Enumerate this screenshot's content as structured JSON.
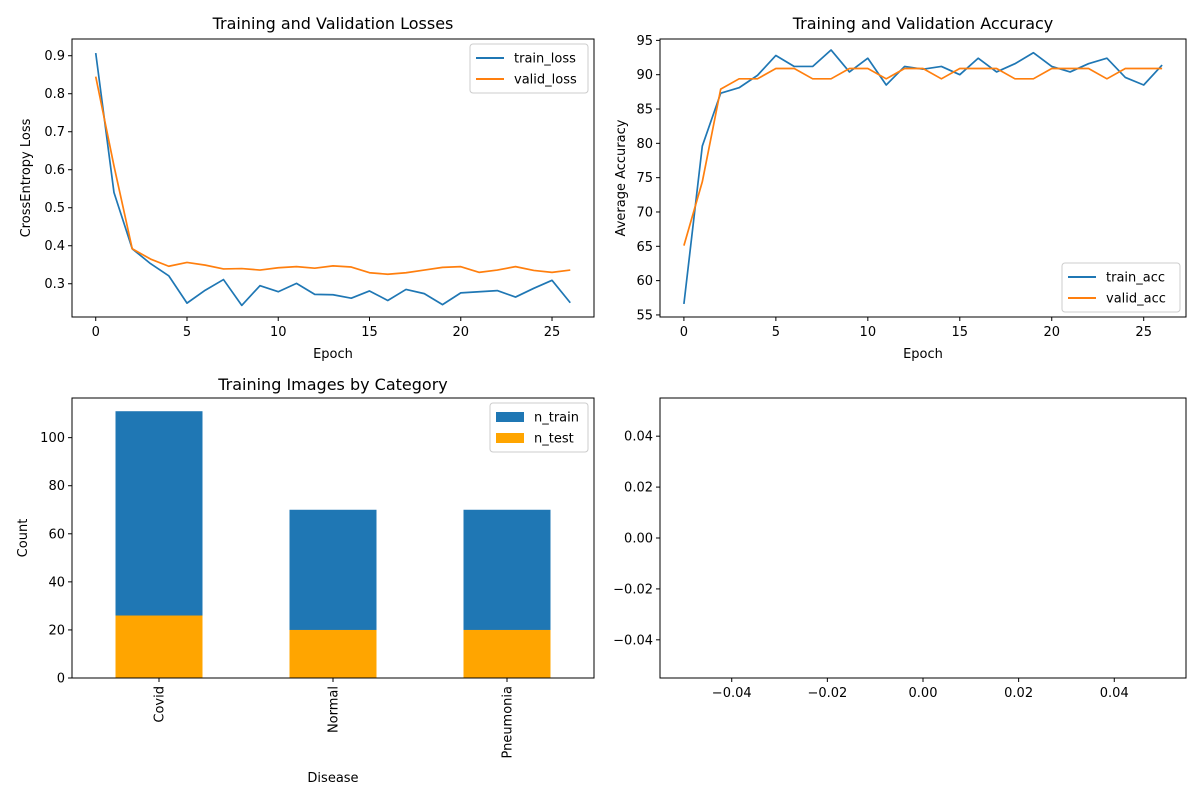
{
  "chart_data": [
    {
      "type": "line",
      "title": "Training and Validation Losses",
      "xlabel": "Epoch",
      "ylabel": "CrossEntropy Loss",
      "xlim": [
        -1.3,
        27.3
      ],
      "ylim": [
        0.2125,
        0.944
      ],
      "xticks": [
        0,
        5,
        10,
        15,
        20,
        25
      ],
      "yticks": [
        0.3,
        0.4,
        0.5,
        0.6,
        0.7,
        0.8,
        0.9
      ],
      "tick_labels_x": [
        "0",
        "5",
        "10",
        "15",
        "20",
        "25"
      ],
      "tick_labels_y": [
        "0.3",
        "0.4",
        "0.5",
        "0.6",
        "0.7",
        "0.8",
        "0.9"
      ],
      "legend": "upper right",
      "x": [
        0,
        1,
        2,
        3,
        4,
        5,
        6,
        7,
        8,
        9,
        10,
        11,
        12,
        13,
        14,
        15,
        16,
        17,
        18,
        19,
        20,
        21,
        22,
        23,
        24,
        25,
        26
      ],
      "series": [
        {
          "name": "train_loss",
          "color": "#1f77b4",
          "values": [
            0.907,
            0.54,
            0.392,
            0.353,
            0.321,
            0.249,
            0.283,
            0.311,
            0.243,
            0.295,
            0.279,
            0.301,
            0.272,
            0.271,
            0.262,
            0.281,
            0.256,
            0.285,
            0.274,
            0.245,
            0.276,
            0.279,
            0.282,
            0.265,
            0.288,
            0.309,
            0.25
          ]
        },
        {
          "name": "valid_loss",
          "color": "#ff7f0e",
          "values": [
            0.845,
            0.61,
            0.392,
            0.365,
            0.346,
            0.356,
            0.349,
            0.339,
            0.34,
            0.336,
            0.342,
            0.345,
            0.341,
            0.347,
            0.344,
            0.329,
            0.325,
            0.329,
            0.336,
            0.343,
            0.345,
            0.33,
            0.336,
            0.345,
            0.335,
            0.33,
            0.336
          ]
        }
      ]
    },
    {
      "type": "line",
      "title": "Training and Validation Accuracy",
      "xlabel": "Epoch",
      "ylabel": "Average Accuracy",
      "xlim": [
        -1.3,
        27.3
      ],
      "ylim": [
        54.7,
        95.2
      ],
      "xticks": [
        0,
        5,
        10,
        15,
        20,
        25
      ],
      "yticks": [
        55,
        60,
        65,
        70,
        75,
        80,
        85,
        90,
        95
      ],
      "tick_labels_x": [
        "0",
        "5",
        "10",
        "15",
        "20",
        "25"
      ],
      "tick_labels_y": [
        "55",
        "60",
        "65",
        "70",
        "75",
        "80",
        "85",
        "90",
        "95"
      ],
      "legend": "lower right",
      "x": [
        0,
        1,
        2,
        3,
        4,
        5,
        6,
        7,
        8,
        9,
        10,
        11,
        12,
        13,
        14,
        15,
        16,
        17,
        18,
        19,
        20,
        21,
        22,
        23,
        24,
        25,
        26
      ],
      "series": [
        {
          "name": "train_acc",
          "color": "#1f77b4",
          "values": [
            56.6,
            79.6,
            87.3,
            88.1,
            89.9,
            92.8,
            91.2,
            91.2,
            93.6,
            90.4,
            92.4,
            88.5,
            91.2,
            90.8,
            91.2,
            90.0,
            92.4,
            90.4,
            91.6,
            93.2,
            91.2,
            90.4,
            91.6,
            92.4,
            89.6,
            88.5,
            91.4
          ]
        },
        {
          "name": "valid_acc",
          "color": "#ff7f0e",
          "values": [
            65.1,
            74.4,
            87.9,
            89.4,
            89.4,
            90.9,
            90.9,
            89.4,
            89.4,
            90.9,
            90.9,
            89.4,
            90.9,
            90.9,
            89.4,
            90.9,
            90.9,
            90.9,
            89.4,
            89.4,
            90.9,
            90.9,
            90.9,
            89.4,
            90.9,
            90.9,
            90.9
          ]
        }
      ]
    },
    {
      "type": "bar",
      "title": "Training Images by Category",
      "xlabel": "Disease",
      "ylabel": "Count",
      "ylim": [
        0,
        116.5
      ],
      "yticks": [
        0,
        20,
        40,
        60,
        80,
        100
      ],
      "tick_labels_y": [
        "0",
        "20",
        "40",
        "60",
        "80",
        "100"
      ],
      "legend": "upper right",
      "categories": [
        "Covid",
        "Normal",
        "Pneumonia"
      ],
      "series": [
        {
          "name": "n_train",
          "color": "#1f77b4",
          "values": [
            111,
            70,
            70
          ]
        },
        {
          "name": "n_test",
          "color": "#ffa500",
          "values": [
            26,
            20,
            20
          ]
        }
      ]
    },
    {
      "type": "line",
      "title": "",
      "xlabel": "",
      "ylabel": "",
      "xlim": [
        -0.055,
        0.055
      ],
      "ylim": [
        -0.055,
        0.055
      ],
      "xticks": [
        -0.04,
        -0.02,
        0.0,
        0.02,
        0.04
      ],
      "yticks": [
        -0.04,
        -0.02,
        0.0,
        0.02,
        0.04
      ],
      "tick_labels_x": [
        "−0.04",
        "−0.02",
        "0.00",
        "0.02",
        "0.04"
      ],
      "tick_labels_y": [
        "−0.04",
        "−0.02",
        "0.00",
        "0.02",
        "0.04"
      ],
      "series": []
    }
  ]
}
